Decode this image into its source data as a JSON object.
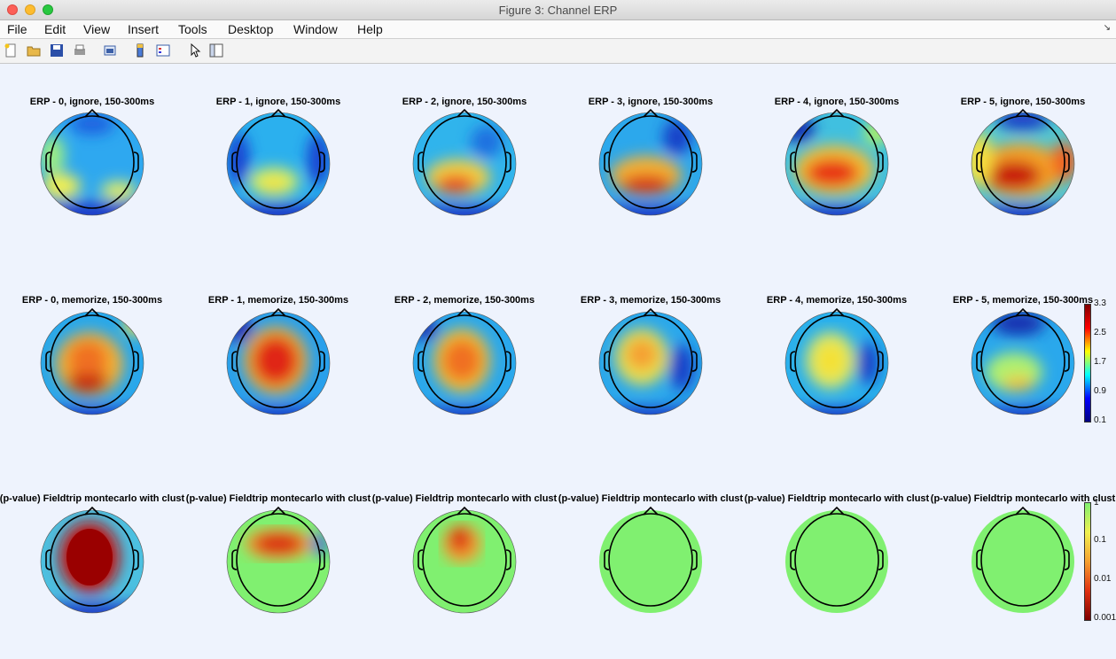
{
  "window": {
    "title": "Figure 3: Channel ERP"
  },
  "menu": {
    "items": [
      "File",
      "Edit",
      "View",
      "Insert",
      "Tools",
      "Desktop",
      "Window",
      "Help"
    ]
  },
  "toolbar": {
    "icons": [
      "new-figure-icon",
      "open-folder-icon",
      "save-icon",
      "print-icon",
      "print-preview-icon",
      "colorbar-icon",
      "legend-icon",
      "pointer-icon",
      "property-editor-icon"
    ]
  },
  "rows": [
    {
      "titles": [
        "ERP - 0, ignore, 150-300ms",
        "ERP - 1, ignore, 150-300ms",
        "ERP - 2, ignore, 150-300ms",
        "ERP - 3, ignore, 150-300ms",
        "ERP - 4, ignore, 150-300ms",
        "ERP - 5, ignore, 150-300ms"
      ]
    },
    {
      "titles": [
        "ERP - 0, memorize, 150-300ms",
        "ERP - 1, memorize, 150-300ms",
        "ERP - 2, memorize, 150-300ms",
        "ERP - 3, memorize, 150-300ms",
        "ERP - 4, memorize, 150-300ms",
        "ERP - 5, memorize, 150-300ms"
      ],
      "colorbar": {
        "ticks": [
          "3.3",
          "2.5",
          "1.7",
          "0.9",
          "0.1"
        ]
      }
    },
    {
      "titles": [
        "(p-value) Fieldtrip montecarlo with clust",
        "(p-value) Fieldtrip montecarlo with clust",
        "(p-value) Fieldtrip montecarlo with clust",
        "(p-value) Fieldtrip montecarlo with clust",
        "(p-value) Fieldtrip montecarlo with clust",
        "(p-value) Fieldtrip montecarlo with clust"
      ],
      "colorbar": {
        "ticks": [
          "1",
          "0.1",
          "0.01",
          "0.001"
        ]
      }
    }
  ]
}
